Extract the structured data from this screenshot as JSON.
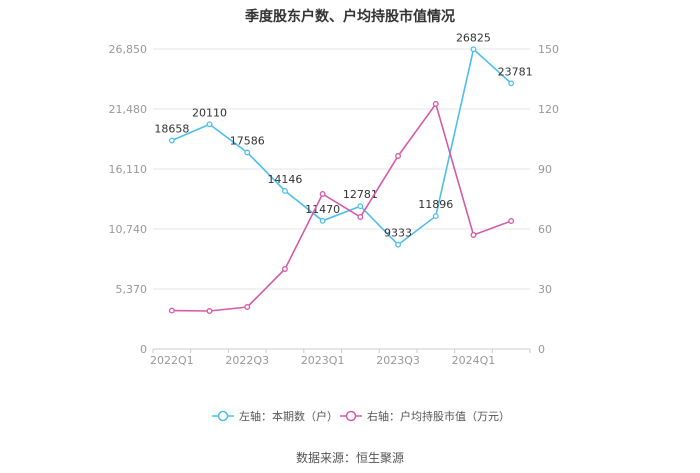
{
  "title": "季度股东户数、户均持股市值情况",
  "source": "数据来源：恒生聚源",
  "colors": {
    "left_series": "#4dbfef",
    "right_series": "#d65aa8",
    "grid": "#e6e6e6",
    "axis_text": "#999999",
    "label_text": "#333333"
  },
  "chart_data": {
    "type": "line",
    "x": [
      "2022Q1",
      "2022Q2",
      "2022Q3",
      "2022Q4",
      "2023Q1",
      "2023Q2",
      "2023Q3",
      "2023Q4",
      "2024Q1",
      "2024Q2"
    ],
    "x_tick_labels": [
      "2022Q1",
      "2022Q3",
      "2023Q1",
      "2023Q3",
      "2024Q1"
    ],
    "x_tick_indices": [
      0,
      2,
      4,
      6,
      8
    ],
    "y_left": {
      "ylim": [
        0,
        26850
      ],
      "ticks": [
        0,
        5370,
        10740,
        16110,
        21480,
        26850
      ],
      "tick_labels": [
        "0",
        "5,370",
        "10,740",
        "16,110",
        "21,480",
        "26,850"
      ]
    },
    "y_right": {
      "ylim": [
        0,
        150
      ],
      "ticks": [
        0,
        30,
        60,
        90,
        120,
        150
      ],
      "tick_labels": [
        "0",
        "30",
        "60",
        "90",
        "120",
        "150"
      ]
    },
    "grid": true,
    "legend_position": "bottom",
    "series": [
      {
        "name": "左轴：本期数（户）",
        "axis": "left",
        "color": "#4dbfef",
        "values": [
          18658,
          20110,
          17586,
          14146,
          11470,
          12781,
          9333,
          11896,
          26825,
          23781
        ],
        "data_labels": [
          "18658",
          "20110",
          "17586",
          "14146",
          "11470",
          "12781",
          "9333",
          "11896",
          "26825",
          "23781"
        ]
      },
      {
        "name": "右轴：户均持股市值（万元）",
        "axis": "right",
        "color": "#d65aa8",
        "values": [
          19.2,
          19.0,
          21.0,
          40.0,
          77.5,
          66.0,
          96.5,
          122.5,
          57.0,
          64.0
        ]
      }
    ]
  }
}
